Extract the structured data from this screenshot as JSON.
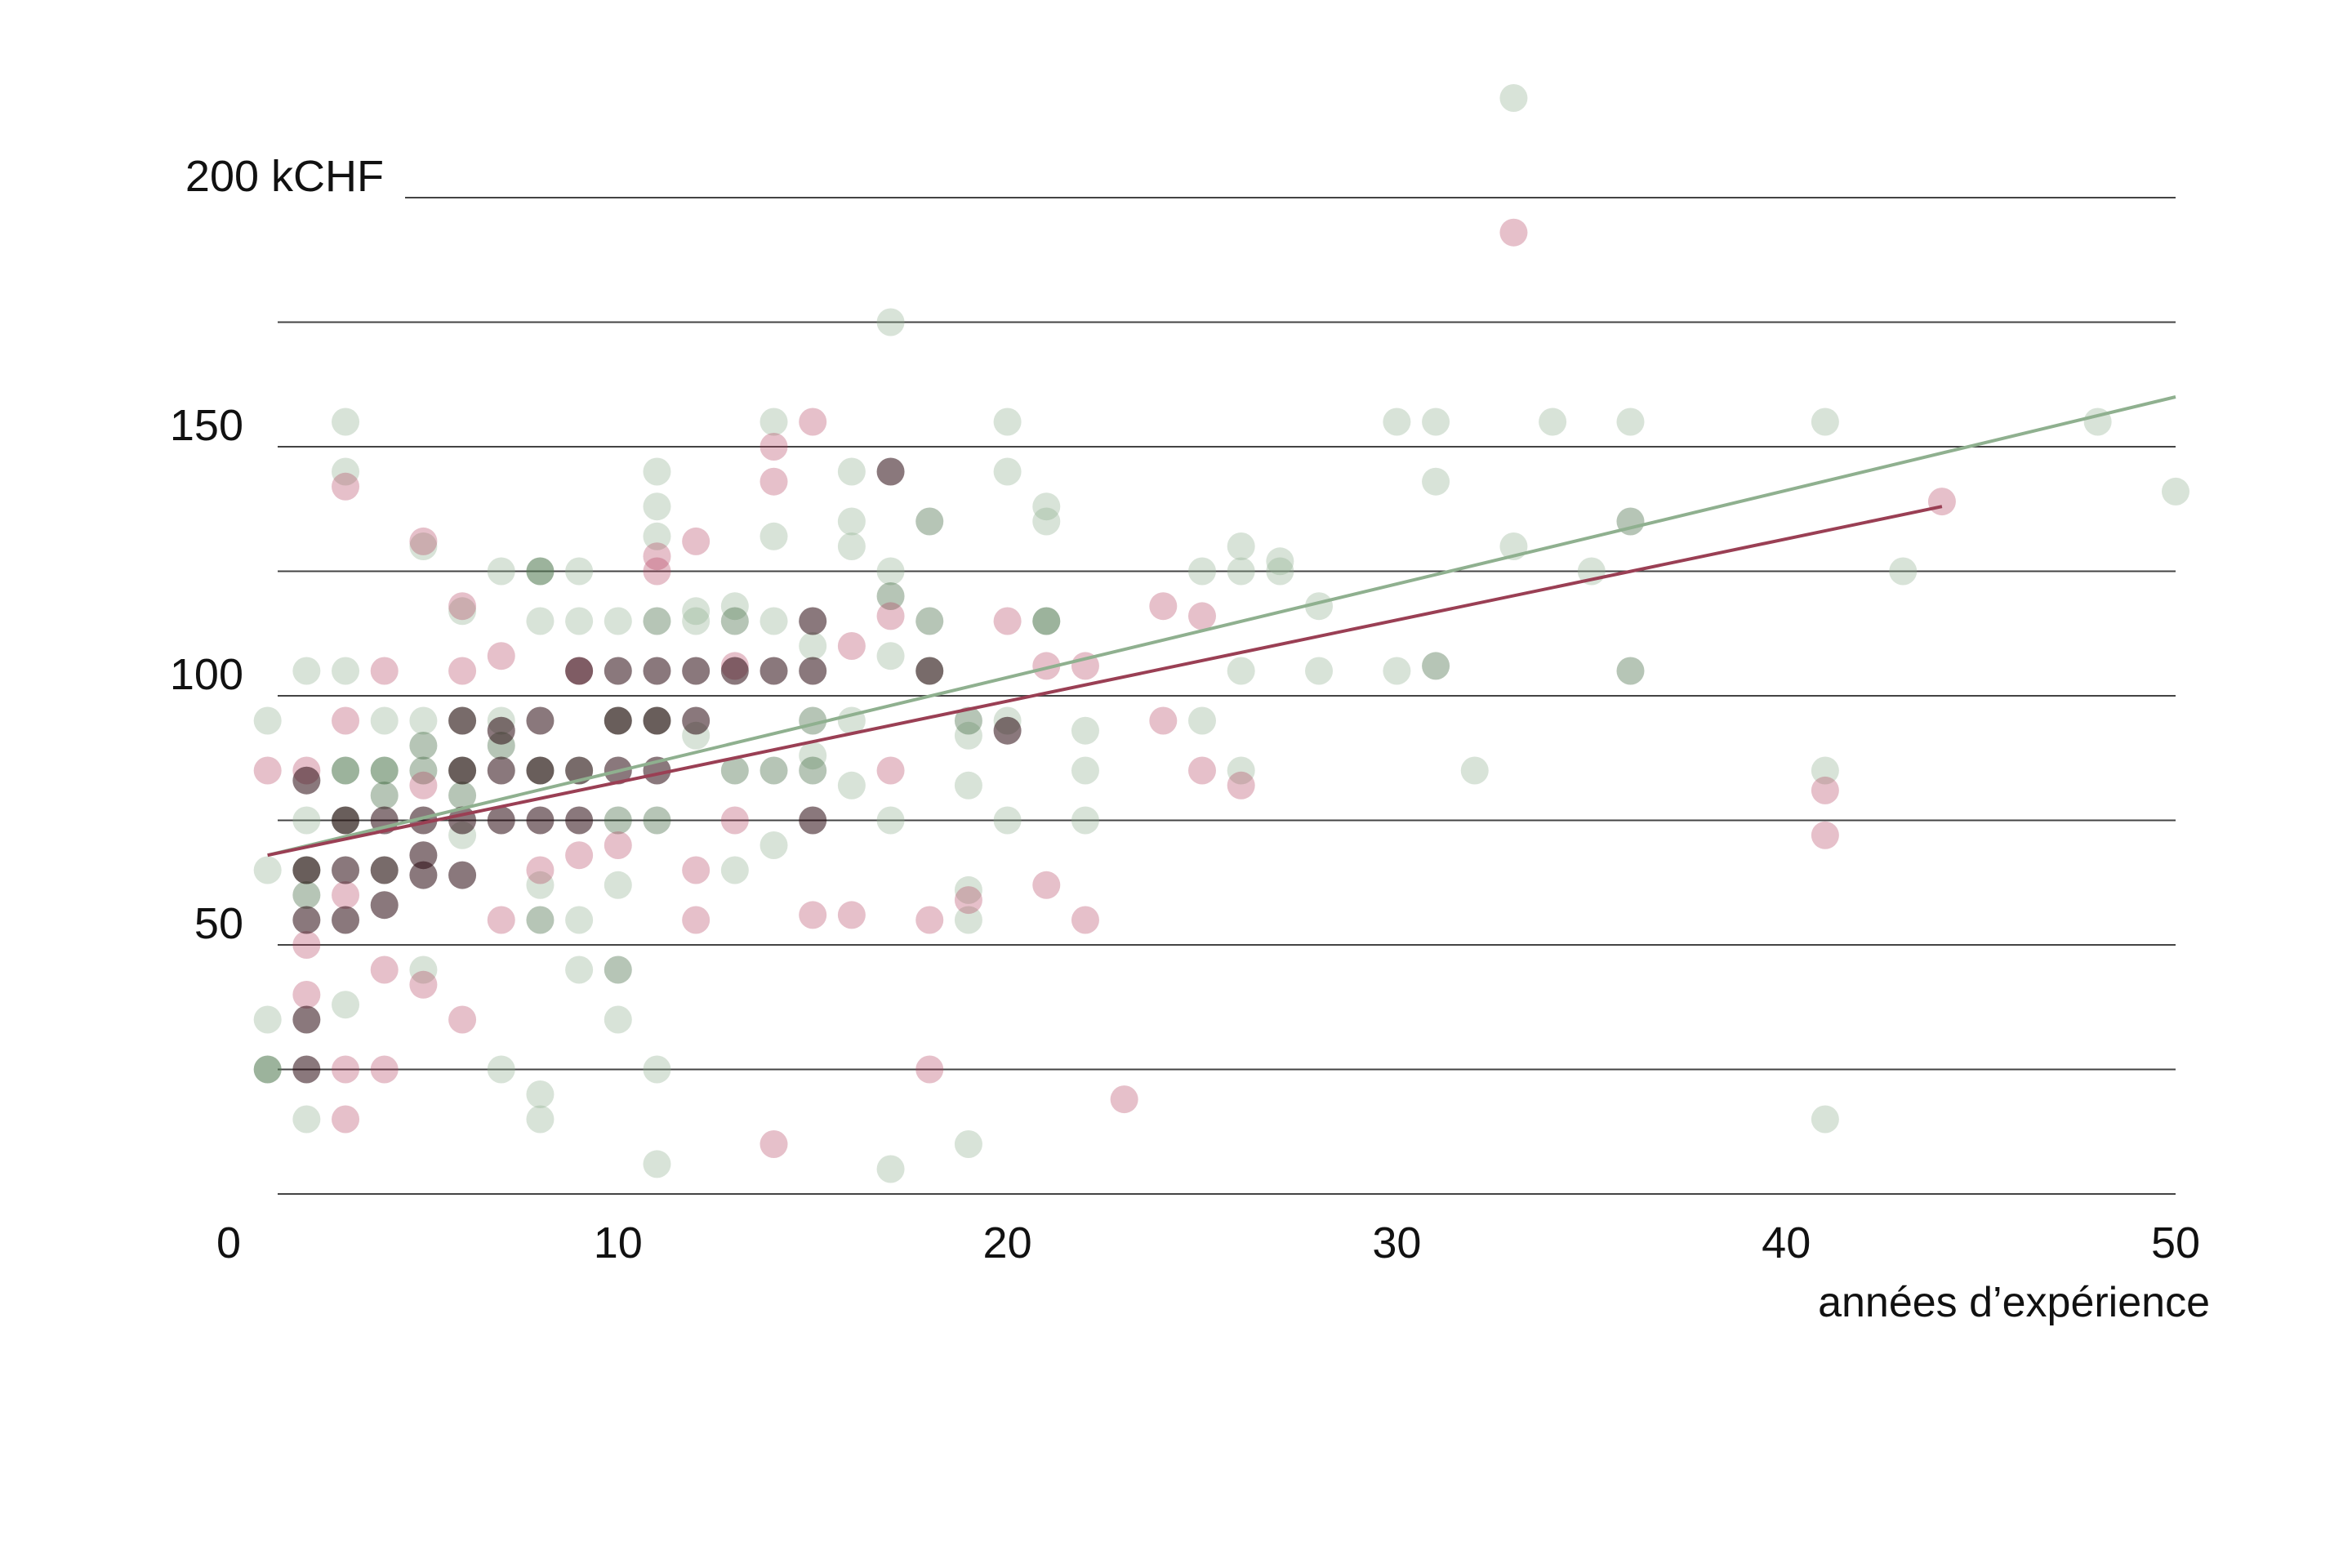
{
  "chart_data": {
    "type": "scatter",
    "xlabel": "années d’expérience",
    "ylabel": "",
    "xlim": [
      0,
      50
    ],
    "ylim": [
      0,
      200
    ],
    "x_ticks": [
      0,
      10,
      20,
      30,
      40,
      50
    ],
    "y_tick_labels": [
      {
        "value": 50,
        "label": "50"
      },
      {
        "value": 100,
        "label": "100"
      },
      {
        "value": 150,
        "label": "150"
      },
      {
        "value": 200,
        "label": "200 kCHF"
      }
    ],
    "gridlines_y": [
      25,
      50,
      75,
      100,
      125,
      150,
      175,
      200
    ],
    "grid": true,
    "series": [
      {
        "color": "#8fb08f",
        "opacity": 0.35,
        "points": [
          [
            1,
            35
          ],
          [
            1,
            25
          ],
          [
            1,
            95
          ],
          [
            1,
            65
          ],
          [
            2,
            105
          ],
          [
            2,
            75
          ],
          [
            2,
            15
          ],
          [
            3,
            105
          ],
          [
            3,
            38
          ],
          [
            3,
            85
          ],
          [
            3,
            155
          ],
          [
            3,
            145
          ],
          [
            4,
            95
          ],
          [
            4,
            65
          ],
          [
            4,
            85
          ],
          [
            5,
            45
          ],
          [
            5,
            95
          ],
          [
            5,
            130
          ],
          [
            6,
            95
          ],
          [
            6,
            117
          ],
          [
            6,
            72
          ],
          [
            7,
            125
          ],
          [
            7,
            95
          ],
          [
            7,
            25
          ],
          [
            8,
            125
          ],
          [
            8,
            115
          ],
          [
            8,
            20
          ],
          [
            8,
            15
          ],
          [
            8,
            62
          ],
          [
            9,
            125
          ],
          [
            9,
            115
          ],
          [
            9,
            45
          ],
          [
            9,
            85
          ],
          [
            9,
            55
          ],
          [
            10,
            35
          ],
          [
            10,
            115
          ],
          [
            10,
            62
          ],
          [
            11,
            145
          ],
          [
            11,
            138
          ],
          [
            11,
            132
          ],
          [
            11,
            25
          ],
          [
            11,
            6
          ],
          [
            12,
            115
          ],
          [
            12,
            117
          ],
          [
            12,
            92
          ],
          [
            13,
            118
          ],
          [
            13,
            65
          ],
          [
            14,
            155
          ],
          [
            14,
            115
          ],
          [
            14,
            132
          ],
          [
            14,
            70
          ],
          [
            15,
            110
          ],
          [
            15,
            88
          ],
          [
            16,
            145
          ],
          [
            16,
            135
          ],
          [
            16,
            130
          ],
          [
            16,
            82
          ],
          [
            16,
            95
          ],
          [
            17,
            175
          ],
          [
            17,
            125
          ],
          [
            17,
            108
          ],
          [
            17,
            75
          ],
          [
            17,
            5
          ],
          [
            18,
            105
          ],
          [
            19,
            92
          ],
          [
            19,
            82
          ],
          [
            19,
            61
          ],
          [
            19,
            55
          ],
          [
            19,
            10
          ],
          [
            20,
            155
          ],
          [
            20,
            145
          ],
          [
            20,
            95
          ],
          [
            20,
            75
          ],
          [
            21,
            138
          ],
          [
            21,
            135
          ],
          [
            21,
            115
          ],
          [
            22,
            93
          ],
          [
            22,
            85
          ],
          [
            22,
            75
          ],
          [
            25,
            125
          ],
          [
            25,
            95
          ],
          [
            26,
            130
          ],
          [
            26,
            125
          ],
          [
            26,
            105
          ],
          [
            26,
            85
          ],
          [
            27,
            127
          ],
          [
            27,
            125
          ],
          [
            28,
            118
          ],
          [
            28,
            105
          ],
          [
            30,
            155
          ],
          [
            30,
            105
          ],
          [
            31,
            155
          ],
          [
            31,
            143
          ],
          [
            32,
            85
          ],
          [
            33,
            130
          ],
          [
            33,
            220
          ],
          [
            34,
            155
          ],
          [
            35,
            125
          ],
          [
            36,
            155
          ],
          [
            41,
            155
          ],
          [
            41,
            85
          ],
          [
            41,
            15
          ],
          [
            43,
            125
          ],
          [
            48,
            155
          ],
          [
            50,
            141
          ]
        ]
      },
      {
        "color": "#2f5a2f",
        "opacity": 0.35,
        "points": [
          [
            1,
            25
          ],
          [
            2,
            65
          ],
          [
            2,
            60
          ],
          [
            3,
            85
          ],
          [
            3,
            75
          ],
          [
            4,
            85
          ],
          [
            4,
            80
          ],
          [
            5,
            85
          ],
          [
            5,
            90
          ],
          [
            6,
            85
          ],
          [
            6,
            80
          ],
          [
            7,
            90
          ],
          [
            8,
            85
          ],
          [
            8,
            55
          ],
          [
            8,
            125
          ],
          [
            10,
            95
          ],
          [
            10,
            75
          ],
          [
            11,
            95
          ],
          [
            11,
            75
          ],
          [
            11,
            115
          ],
          [
            13,
            115
          ],
          [
            13,
            85
          ],
          [
            14,
            85
          ],
          [
            15,
            95
          ],
          [
            15,
            85
          ],
          [
            17,
            120
          ],
          [
            18,
            135
          ],
          [
            18,
            115
          ],
          [
            19,
            95
          ],
          [
            21,
            115
          ],
          [
            31,
            106
          ],
          [
            36,
            135
          ],
          [
            36,
            105
          ],
          [
            10,
            45
          ]
        ]
      },
      {
        "color": "#b23a5a",
        "opacity": 0.32,
        "points": [
          [
            1,
            85
          ],
          [
            2,
            85
          ],
          [
            2,
            50
          ],
          [
            2,
            40
          ],
          [
            3,
            95
          ],
          [
            3,
            60
          ],
          [
            3,
            25
          ],
          [
            3,
            15
          ],
          [
            3,
            142
          ],
          [
            4,
            105
          ],
          [
            4,
            45
          ],
          [
            4,
            25
          ],
          [
            5,
            131
          ],
          [
            5,
            82
          ],
          [
            5,
            42
          ],
          [
            6,
            35
          ],
          [
            6,
            118
          ],
          [
            6,
            105
          ],
          [
            7,
            108
          ],
          [
            7,
            55
          ],
          [
            8,
            65
          ],
          [
            9,
            105
          ],
          [
            9,
            68
          ],
          [
            10,
            70
          ],
          [
            11,
            128
          ],
          [
            11,
            125
          ],
          [
            12,
            131
          ],
          [
            12,
            65
          ],
          [
            12,
            55
          ],
          [
            13,
            106
          ],
          [
            13,
            75
          ],
          [
            14,
            150
          ],
          [
            14,
            143
          ],
          [
            14,
            10
          ],
          [
            15,
            155
          ],
          [
            15,
            56
          ],
          [
            16,
            56
          ],
          [
            16,
            110
          ],
          [
            17,
            116
          ],
          [
            17,
            85
          ],
          [
            18,
            55
          ],
          [
            18,
            25
          ],
          [
            19,
            59
          ],
          [
            20,
            115
          ],
          [
            21,
            106
          ],
          [
            21,
            62
          ],
          [
            22,
            106
          ],
          [
            22,
            55
          ],
          [
            23,
            19
          ],
          [
            24,
            118
          ],
          [
            24,
            95
          ],
          [
            25,
            116
          ],
          [
            25,
            85
          ],
          [
            26,
            82
          ],
          [
            33,
            193
          ],
          [
            41,
            81
          ],
          [
            41,
            72
          ],
          [
            44,
            139
          ]
        ]
      },
      {
        "color": "#2a0a10",
        "opacity": 0.55,
        "points": [
          [
            2,
            65
          ],
          [
            2,
            25
          ],
          [
            2,
            55
          ],
          [
            2,
            83
          ],
          [
            3,
            75
          ],
          [
            3,
            65
          ],
          [
            3,
            55
          ],
          [
            4,
            75
          ],
          [
            4,
            65
          ],
          [
            4,
            58
          ],
          [
            5,
            75
          ],
          [
            5,
            68
          ],
          [
            5,
            64
          ],
          [
            6,
            75
          ],
          [
            6,
            85
          ],
          [
            6,
            64
          ],
          [
            6,
            95
          ],
          [
            7,
            75
          ],
          [
            7,
            85
          ],
          [
            7,
            93
          ],
          [
            8,
            95
          ],
          [
            8,
            85
          ],
          [
            8,
            75
          ],
          [
            9,
            85
          ],
          [
            9,
            75
          ],
          [
            9,
            105
          ],
          [
            10,
            95
          ],
          [
            10,
            85
          ],
          [
            10,
            105
          ],
          [
            11,
            95
          ],
          [
            11,
            105
          ],
          [
            11,
            85
          ],
          [
            12,
            95
          ],
          [
            12,
            105
          ],
          [
            13,
            105
          ],
          [
            14,
            105
          ],
          [
            15,
            115
          ],
          [
            15,
            105
          ],
          [
            15,
            75
          ],
          [
            17,
            145
          ],
          [
            18,
            105
          ],
          [
            20,
            93
          ],
          [
            2,
            35
          ]
        ]
      }
    ],
    "trend_lines": [
      {
        "color": "#8fb08f",
        "from": [
          1,
          68
        ],
        "to": [
          50,
          160
        ]
      },
      {
        "color": "#9a3f54",
        "from": [
          1,
          68
        ],
        "to": [
          44,
          138
        ]
      }
    ]
  }
}
